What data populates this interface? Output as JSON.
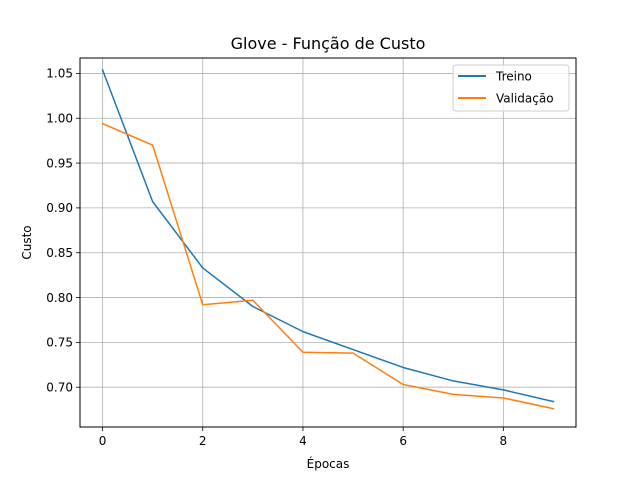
{
  "chart_data": {
    "type": "line",
    "title": "Glove - Função de Custo",
    "xlabel": "Épocas",
    "ylabel": "Custo",
    "xlim": [
      -0.45,
      9.45
    ],
    "ylim": [
      0.6556,
      1.0672
    ],
    "grid": true,
    "legend_position": "top-right",
    "x": [
      0,
      1,
      2,
      3,
      4,
      5,
      6,
      7,
      8,
      9
    ],
    "xticks": [
      0,
      2,
      4,
      6,
      8
    ],
    "xtick_labels": [
      "0",
      "2",
      "4",
      "6",
      "8"
    ],
    "yticks": [
      0.7,
      0.75,
      0.8,
      0.85,
      0.9,
      0.95,
      1.0,
      1.05
    ],
    "ytick_labels": [
      "0.70",
      "0.75",
      "0.80",
      "0.85",
      "0.90",
      "0.95",
      "1.00",
      "1.05"
    ],
    "series": [
      {
        "name": "Treino",
        "color": "#1f77b4",
        "values": [
          1.054,
          0.907,
          0.833,
          0.79,
          0.762,
          0.742,
          0.722,
          0.707,
          0.697,
          0.684
        ]
      },
      {
        "name": "Validação",
        "color": "#ff7f0e",
        "values": [
          0.994,
          0.97,
          0.792,
          0.797,
          0.739,
          0.738,
          0.703,
          0.692,
          0.688,
          0.676
        ]
      }
    ]
  }
}
